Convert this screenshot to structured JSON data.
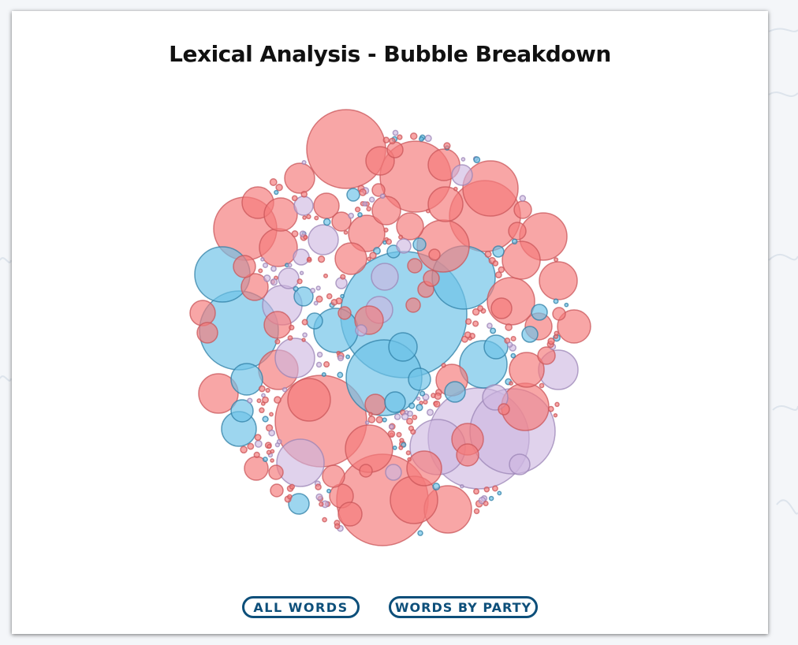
{
  "title": "Lexical Analysis - Bubble Breakdown",
  "buttons": {
    "all_words": "ALL WORDS",
    "words_by_party": "WORDS BY PARTY"
  },
  "colors": {
    "red": "#f47c7c",
    "blue": "#6ec3e8",
    "purple": "#cdb6e0",
    "button": "#0d4f7a"
  },
  "chart_data": {
    "type": "bubble",
    "title": "Lexical Analysis - Bubble Breakdown"
  }
}
